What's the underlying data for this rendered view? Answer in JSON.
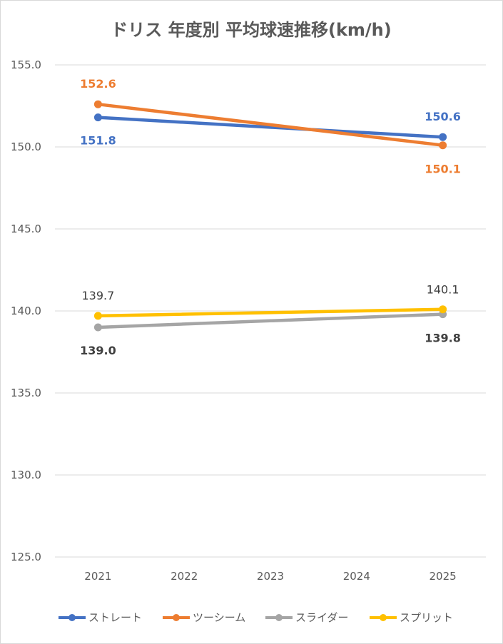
{
  "chart_data": {
    "type": "line",
    "title": "ドリス 年度別 平均球速推移(km/h)",
    "categories": [
      "2021",
      "2022",
      "2023",
      "2024",
      "2025"
    ],
    "ylim": [
      125.0,
      155.0
    ],
    "yticks": [
      "125.0",
      "130.0",
      "135.0",
      "140.0",
      "145.0",
      "150.0",
      "155.0"
    ],
    "grid": true,
    "legend": "bottom",
    "series": [
      {
        "name": "ストレート",
        "color": "#4472c4",
        "x": [
          "2021",
          "2025"
        ],
        "values": [
          151.8,
          150.6
        ],
        "labels": [
          "151.8",
          "150.6"
        ]
      },
      {
        "name": "ツーシーム",
        "color": "#ed7d31",
        "x": [
          "2021",
          "2025"
        ],
        "values": [
          152.6,
          150.1
        ],
        "labels": [
          "152.6",
          "150.1"
        ]
      },
      {
        "name": "スライダー",
        "color": "#a5a5a5",
        "x": [
          "2021",
          "2025"
        ],
        "values": [
          139.0,
          139.8
        ],
        "labels": [
          "139.0",
          "139.8"
        ]
      },
      {
        "name": "スプリット",
        "color": "#ffc000",
        "x": [
          "2021",
          "2025"
        ],
        "values": [
          139.7,
          140.1
        ],
        "labels": [
          "139.7",
          "140.1"
        ]
      }
    ]
  }
}
